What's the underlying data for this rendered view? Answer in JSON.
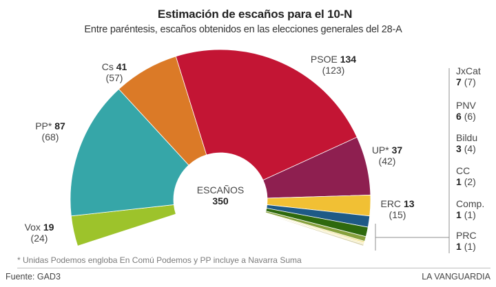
{
  "chart_data": {
    "type": "pie",
    "variant": "half-donut (parliament seats)",
    "title": "Estimación de escaños para el 10-N",
    "subtitle": "Entre paréntesis, escaños obtenidos en las elecciones generales del 28-A",
    "center_label": "ESCAÑOS",
    "total": 350,
    "parties": [
      {
        "name": "Vox",
        "seats": 19,
        "previous": 24,
        "color": "#9dc32b"
      },
      {
        "name": "PP*",
        "seats": 87,
        "previous": 68,
        "color": "#36a6a8"
      },
      {
        "name": "Cs",
        "seats": 41,
        "previous": 57,
        "color": "#db7a27"
      },
      {
        "name": "PSOE",
        "seats": 134,
        "previous": 123,
        "color": "#c31534"
      },
      {
        "name": "UP*",
        "seats": 37,
        "previous": 42,
        "color": "#8e1f50"
      },
      {
        "name": "ERC",
        "seats": 13,
        "previous": 15,
        "color": "#f1c034"
      },
      {
        "name": "JxCat",
        "seats": 7,
        "previous": 7,
        "color": "#1e5a86"
      },
      {
        "name": "PNV",
        "seats": 6,
        "previous": 6,
        "color": "#2e690d"
      },
      {
        "name": "Bildu",
        "seats": 3,
        "previous": 4,
        "color": "#87a03c"
      },
      {
        "name": "CC",
        "seats": 1,
        "previous": 2,
        "color": "#f2e08a"
      },
      {
        "name": "Comp.",
        "seats": 1,
        "previous": 1,
        "color": "#f7eebc"
      },
      {
        "name": "PRC",
        "seats": 1,
        "previous": 1,
        "color": "#d8d1a8"
      }
    ],
    "footnote": "* Unidas Podemos engloba En Comú Podemos y PP incluye a Navarra Suma",
    "source": "Fuente: GAD3",
    "brand": "LA VANGUARDIA"
  }
}
